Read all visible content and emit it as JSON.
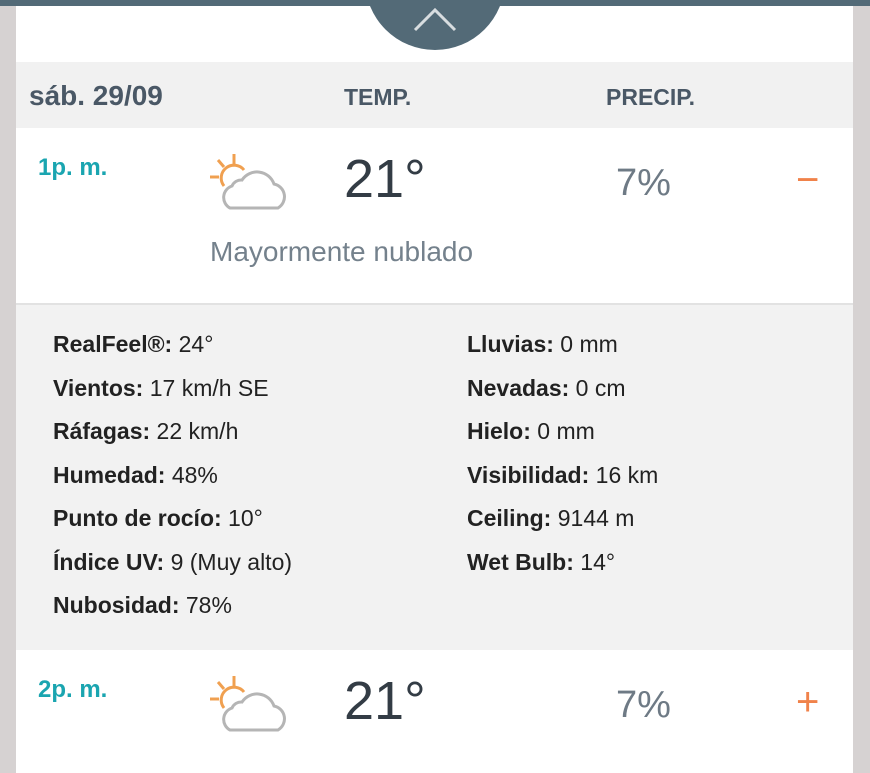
{
  "colors": {
    "accent": "#1aa5b0",
    "toggle": "#f0824a",
    "bar": "#536a77"
  },
  "collapse_icon": "chevron-up-icon",
  "header": {
    "date": "sáb. 29/09",
    "temp_label": "TEMP.",
    "precip_label": "PRECIP."
  },
  "hours": [
    {
      "time": "1p. m.",
      "icon": "partly-sunny-cloud-icon",
      "temp": "21°",
      "precip": "7%",
      "toggle": "−",
      "phrase": "Mayormente nublado",
      "expanded": true
    },
    {
      "time": "2p. m.",
      "icon": "partly-sunny-cloud-icon",
      "temp": "21°",
      "precip": "7%",
      "toggle": "+",
      "expanded": false
    }
  ],
  "details": {
    "left": [
      {
        "label": "RealFeel®:",
        "value": " 24°"
      },
      {
        "label": "Vientos:",
        "value": " 17 km/h SE"
      },
      {
        "label": "Ráfagas:",
        "value": " 22 km/h"
      },
      {
        "label": "Humedad:",
        "value": " 48%"
      },
      {
        "label": "Punto de rocío:",
        "value": " 10°"
      },
      {
        "label": "Índice UV:",
        "value": " 9 (Muy alto)"
      },
      {
        "label": "Nubosidad:",
        "value": " 78%"
      }
    ],
    "right": [
      {
        "label": "Lluvias:",
        "value": " 0 mm"
      },
      {
        "label": "Nevadas:",
        "value": " 0 cm"
      },
      {
        "label": "Hielo:",
        "value": " 0 mm"
      },
      {
        "label": "Visibilidad:",
        "value": " 16 km"
      },
      {
        "label": "Ceiling:",
        "value": " 9144 m"
      },
      {
        "label": "Wet Bulb:",
        "value": " 14°"
      }
    ]
  }
}
